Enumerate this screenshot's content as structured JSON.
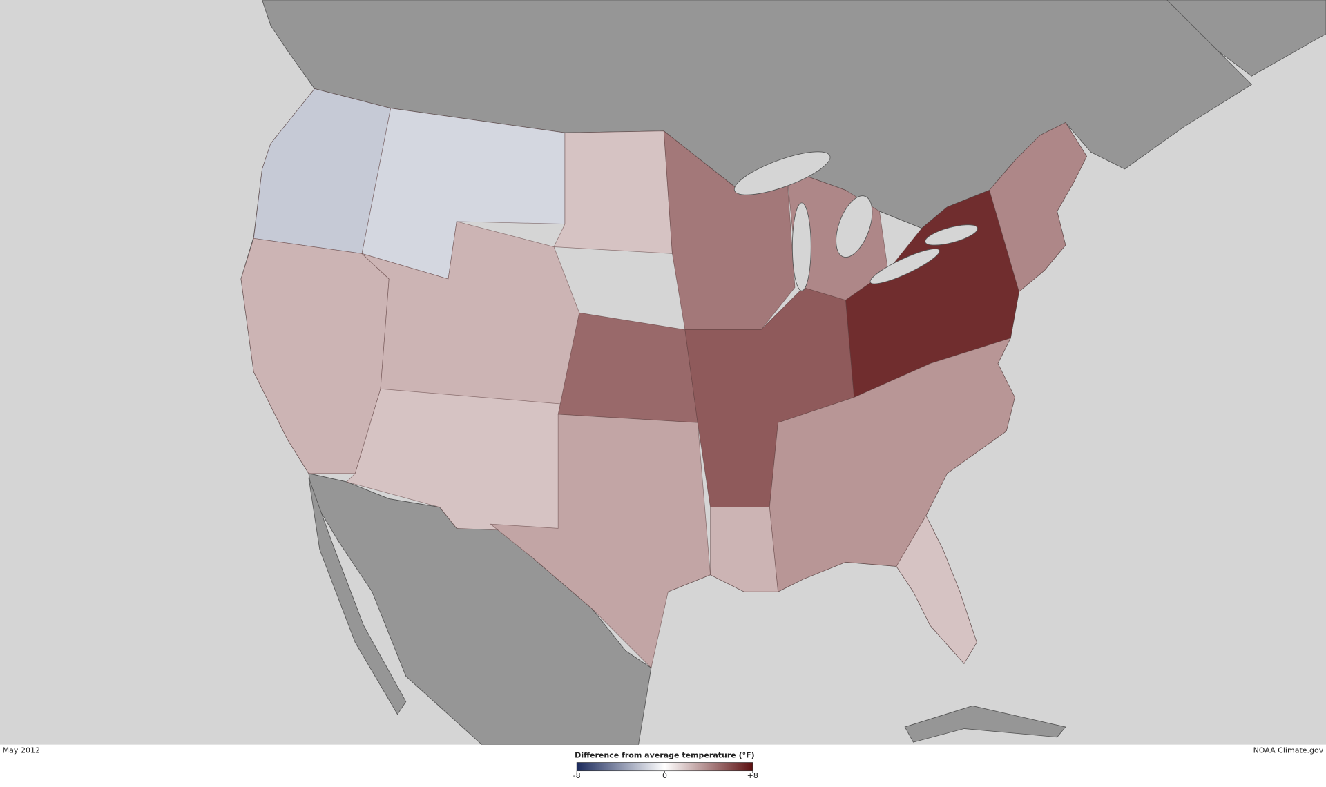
{
  "footer": {
    "date": "May 2012",
    "credit": "NOAA Climate.gov"
  },
  "legend": {
    "title": "Difference from average temperature (°F)",
    "ticks": [
      -8,
      0,
      {
        "value": 8,
        "label": "+8"
      }
    ],
    "colors": [
      "#1b2a5c",
      "#ffffff",
      "#5c0f10"
    ]
  },
  "map": {
    "anomalies": [
      -2,
      -1.5,
      2,
      2.5,
      2.5,
      2,
      5,
      3,
      4.5,
      5.5,
      4,
      7,
      4,
      3.5,
      2.5,
      2
    ]
  }
}
